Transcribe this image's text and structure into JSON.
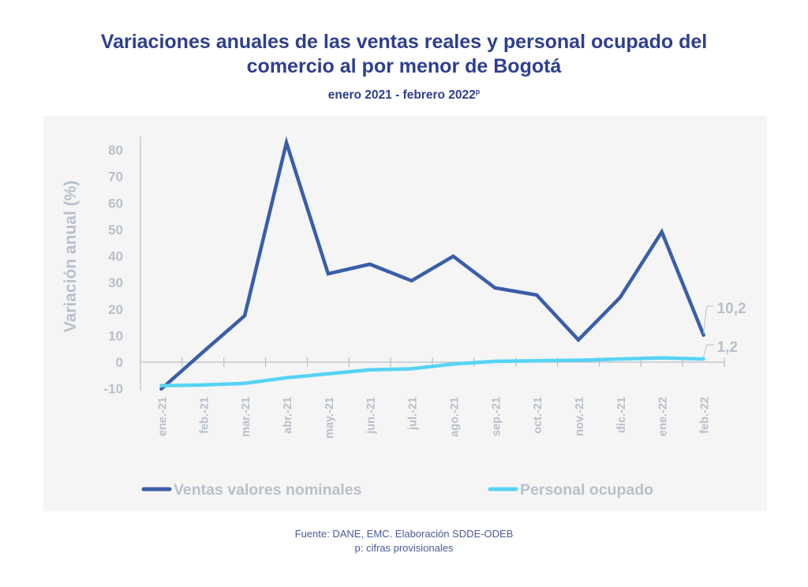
{
  "header": {
    "title_line1": "Variaciones anuales de las ventas reales y personal ocupado del",
    "title_line2": "comercio al por menor de Bogotá",
    "subtitle": "enero 2021 - febrero 2022",
    "subtitle_sup": "p"
  },
  "footer": {
    "source": "Fuente: DANE, EMC. Elaboración SDDE-ODEB",
    "note": "p: cifras provisionales"
  },
  "colors": {
    "title": "#2e3f8f",
    "ventas": "#3a5ea8",
    "personal": "#56d3f5",
    "axis": "#b8bfc9",
    "text_muted": "#b9c0ca",
    "panel": "#f5f5f5"
  },
  "chart_data": {
    "type": "line",
    "title": "Variaciones anuales de las ventas reales y personal ocupado del comercio al por menor de Bogotá",
    "subtitle": "enero 2021 - febrero 2022p",
    "xlabel": "",
    "ylabel": "Variación anual (%)",
    "ylim": [
      -10,
      80
    ],
    "yticks": [
      -10,
      0,
      10,
      20,
      30,
      40,
      50,
      60,
      70,
      80
    ],
    "grid": false,
    "legend_position": "bottom",
    "categories": [
      "ene.-21",
      "feb.-21",
      "mar.-21",
      "abr.-21",
      "may.-21",
      "jun.-21",
      "jul.-21",
      "ago.-21",
      "sep.-21",
      "oct.-21",
      "nov.-21",
      "dic.-21",
      "ene.-22",
      "feb.-22"
    ],
    "series": [
      {
        "name": "Ventas valores nominales",
        "color": "#3a5ea8",
        "values": [
          -10.1,
          3.8,
          17.5,
          82.7,
          33.3,
          36.9,
          30.7,
          39.9,
          28.0,
          25.3,
          8.4,
          24.4,
          49.1,
          10.2
        ],
        "end_label": "10,2"
      },
      {
        "name": "Personal ocupado",
        "color": "#56d3f5",
        "values": [
          -8.9,
          -8.6,
          -8.0,
          -5.9,
          -4.4,
          -2.9,
          -2.5,
          -0.7,
          0.3,
          0.5,
          0.7,
          1.2,
          1.6,
          1.2
        ],
        "end_label": "1,2"
      }
    ]
  }
}
